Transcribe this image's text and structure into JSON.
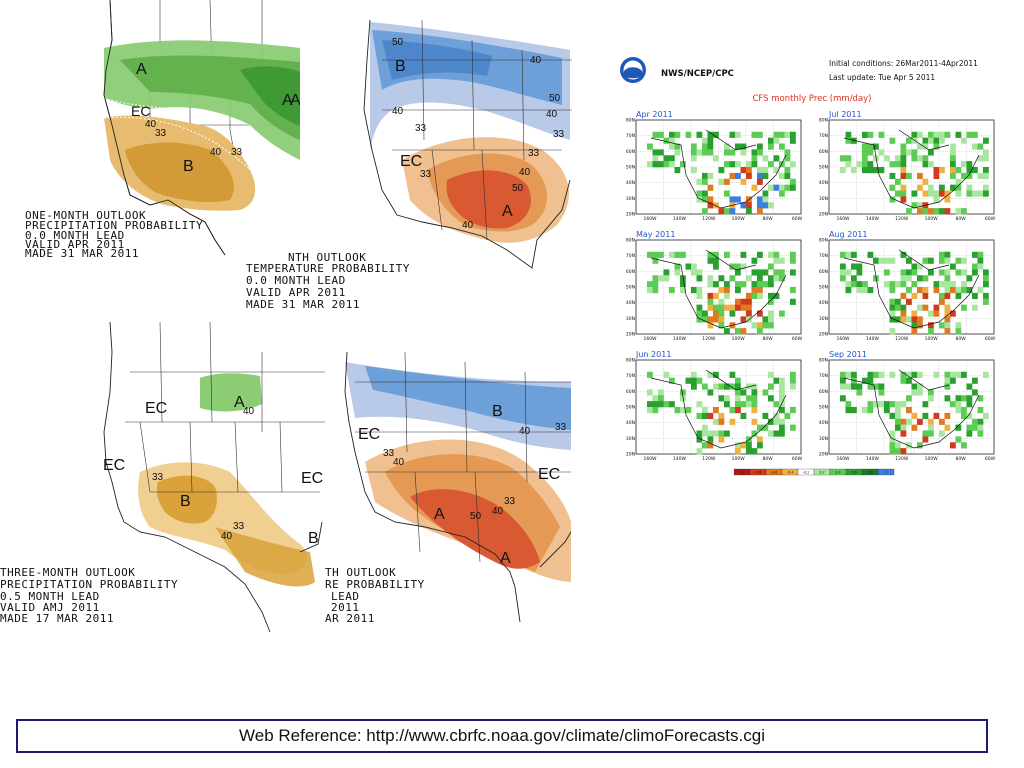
{
  "maps": {
    "precip_1mo": {
      "labels": [
        "A",
        "EC",
        "40",
        "33",
        "B",
        "40",
        "33",
        "A",
        "A"
      ],
      "caption": [
        "ONE-MONTH OUTLOOK",
        "PRECIPITATION PROBABILITY",
        "0.0 MONTH LEAD",
        "VALID APR 2011",
        "MADE 31 MAR 2011"
      ]
    },
    "temp_1mo": {
      "labels": [
        "50",
        "B",
        "40",
        "40",
        "50",
        "33",
        "40",
        "33",
        "EC",
        "33",
        "33",
        "40",
        "50",
        "A",
        "40"
      ],
      "caption": [
        "NTH OUTLOOK",
        "TEMPERATURE PROBABILITY",
        "0.0 MONTH LEAD",
        "VALID APR 2011",
        "MADE 31 MAR 2011"
      ]
    },
    "precip_3mo": {
      "labels": [
        "EC",
        "A",
        "40",
        "EC",
        "33",
        "B",
        "33",
        "40",
        "EC",
        "B"
      ],
      "caption": [
        "THREE-MONTH OUTLOOK",
        "PRECIPITATION PROBABILITY",
        "0.5 MONTH LEAD",
        "VALID AMJ 2011",
        "MADE 17 MAR 2011"
      ]
    },
    "temp_3mo": {
      "labels": [
        "B",
        "40",
        "33",
        "EC",
        "33",
        "40",
        "A",
        "50",
        "33",
        "40",
        "EC",
        "A"
      ],
      "caption": [
        "TH OUTLOOK",
        "RE PROBABILITY",
        "LEAD",
        "2011",
        "AR 2011"
      ]
    }
  },
  "cfs": {
    "org": "NWS/NCEP/CPC",
    "logo_text": "NOAA",
    "initial_conditions": "Initial conditions: 26Mar2011-4Apr2011",
    "last_update": "Last update: Tue Apr 5 2011",
    "title": "CFS monthly Prec (mm/day)",
    "panels": [
      "Apr 2011",
      "Jul 2011",
      "May 2011",
      "Aug 2011",
      "Jun 2011",
      "Sep 2011"
    ],
    "lat_ticks": [
      "80N",
      "70N",
      "60N",
      "50N",
      "40N",
      "30N",
      "20N"
    ],
    "lon_ticks": [
      "160W",
      "140W",
      "120W",
      "100W",
      "80W",
      "60W"
    ],
    "colorbar_ticks": [
      "-1",
      "-0.8",
      "-0.6",
      "-0.4",
      "-0.2",
      "0.2",
      "0.4",
      "0.6",
      "0.8",
      "1"
    ],
    "colorbar_colors": [
      "#b01818",
      "#d23a1e",
      "#e07a22",
      "#f0b040",
      "#ffffff",
      "#a8e6a0",
      "#5ccc55",
      "#2aa030",
      "#1f7a2a",
      "#3a7ee0"
    ]
  },
  "footer": {
    "prefix": "Web Reference: ",
    "url": "http://www.cbrfc.noaa.gov/climate/climoForecasts.cgi"
  },
  "colors": {
    "above_normal_precip": "#6ebd55",
    "below_normal_precip": "#d9a23a",
    "below_normal_temp": "#6d9fd8",
    "above_normal_temp": "#d95a32",
    "frame_border": "#1a1a6e"
  }
}
